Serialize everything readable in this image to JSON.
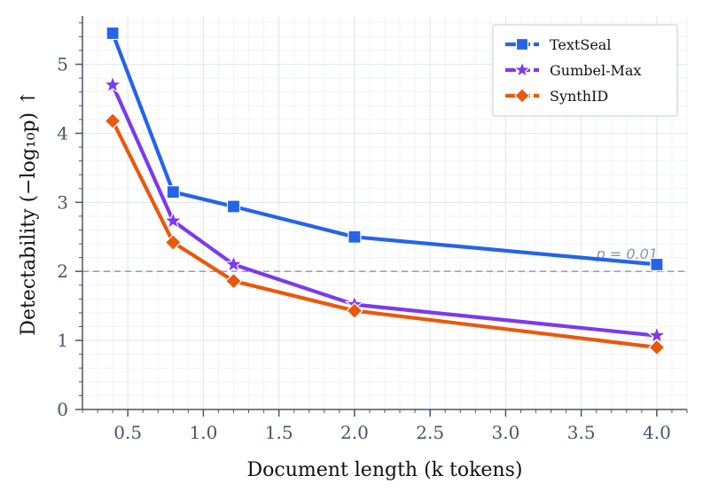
{
  "chart_data": {
    "type": "line",
    "xlabel": "Document length (k tokens)",
    "ylabel": "Detectability (−log₁₀p)  ↑",
    "xlim": [
      0.2,
      4.2
    ],
    "ylim": [
      0,
      5.7
    ],
    "xticks": [
      0.5,
      1.0,
      1.5,
      2.0,
      2.5,
      3.0,
      3.5,
      4.0
    ],
    "xtick_labels": [
      "0.5",
      "1.0",
      "1.5",
      "2.0",
      "2.5",
      "3.0",
      "3.5",
      "4.0"
    ],
    "yticks": [
      0,
      1,
      2,
      3,
      4,
      5
    ],
    "ytick_labels": [
      "0",
      "1",
      "2",
      "3",
      "4",
      "5"
    ],
    "grid": true,
    "legend_position": "top-right",
    "reference_line": {
      "y": 2,
      "label": "p = 0.01",
      "color": "#9aa3b2"
    },
    "x": [
      0.4,
      0.8,
      1.2,
      2.0,
      4.0
    ],
    "series": [
      {
        "name": "TextSeal",
        "values": [
          5.45,
          3.15,
          2.94,
          2.5,
          2.1
        ],
        "color": "#2563eb",
        "marker": "square"
      },
      {
        "name": "Gumbel-Max",
        "values": [
          4.7,
          2.73,
          2.1,
          1.52,
          1.07
        ],
        "color": "#7c3aed",
        "marker": "star"
      },
      {
        "name": "SynthID",
        "values": [
          4.18,
          2.42,
          1.86,
          1.43,
          0.9
        ],
        "color": "#ea580c",
        "marker": "diamond"
      }
    ]
  }
}
